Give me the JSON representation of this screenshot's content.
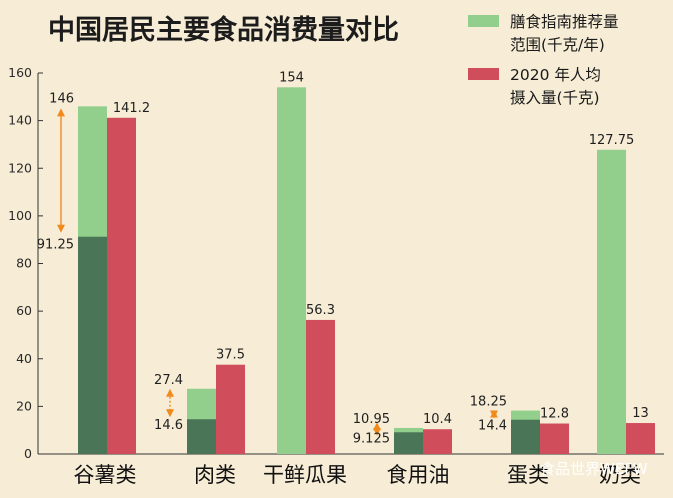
{
  "chart_data": {
    "type": "bar",
    "title": "中国居民主要食品消费量对比",
    "categories": [
      "谷薯类",
      "肉类",
      "干鲜瓜果",
      "食用油",
      "蛋类",
      "奶类"
    ],
    "series": [
      {
        "name": "膳食指南推荐量范围(千克/年)",
        "values": [
          [
            91.25,
            146
          ],
          [
            14.6,
            27.4
          ],
          [
            null,
            154
          ],
          [
            9.125,
            10.95
          ],
          [
            14.4,
            18.25
          ],
          [
            null,
            127.75
          ]
        ],
        "low_labels": [
          "91.25",
          "14.6",
          "",
          "9.125",
          "14.4",
          ""
        ],
        "high_labels": [
          "146",
          "27.4",
          "154",
          "10.95",
          "18.25",
          "127.75"
        ]
      },
      {
        "name": "2020 年人均摄入量(千克)",
        "values": [
          141.2,
          37.5,
          56.3,
          10.4,
          12.8,
          13
        ],
        "labels": [
          "141.2",
          "37.5",
          "56.3",
          "10.4",
          "12.8",
          "13"
        ]
      }
    ],
    "ylim": [
      0,
      160
    ],
    "yticks": [
      "0",
      "20",
      "40",
      "60",
      "80",
      "100",
      "120",
      "140",
      "160"
    ],
    "legend": [
      {
        "lines": [
          "膳食指南推荐量",
          "范围(千克/年)"
        ]
      },
      {
        "lines": [
          "2020 年人均",
          "摄入量(千克)"
        ]
      }
    ],
    "legend_position": "top-right",
    "grid": false
  },
  "colors": {
    "background": "#f7edd6",
    "range_light": "#93cf8c",
    "range_dark": "#4a7557",
    "actual": "#d04d5b",
    "arrow": "#f08a1c",
    "axis": "#333333"
  },
  "watermark": "食品世界WEFW"
}
